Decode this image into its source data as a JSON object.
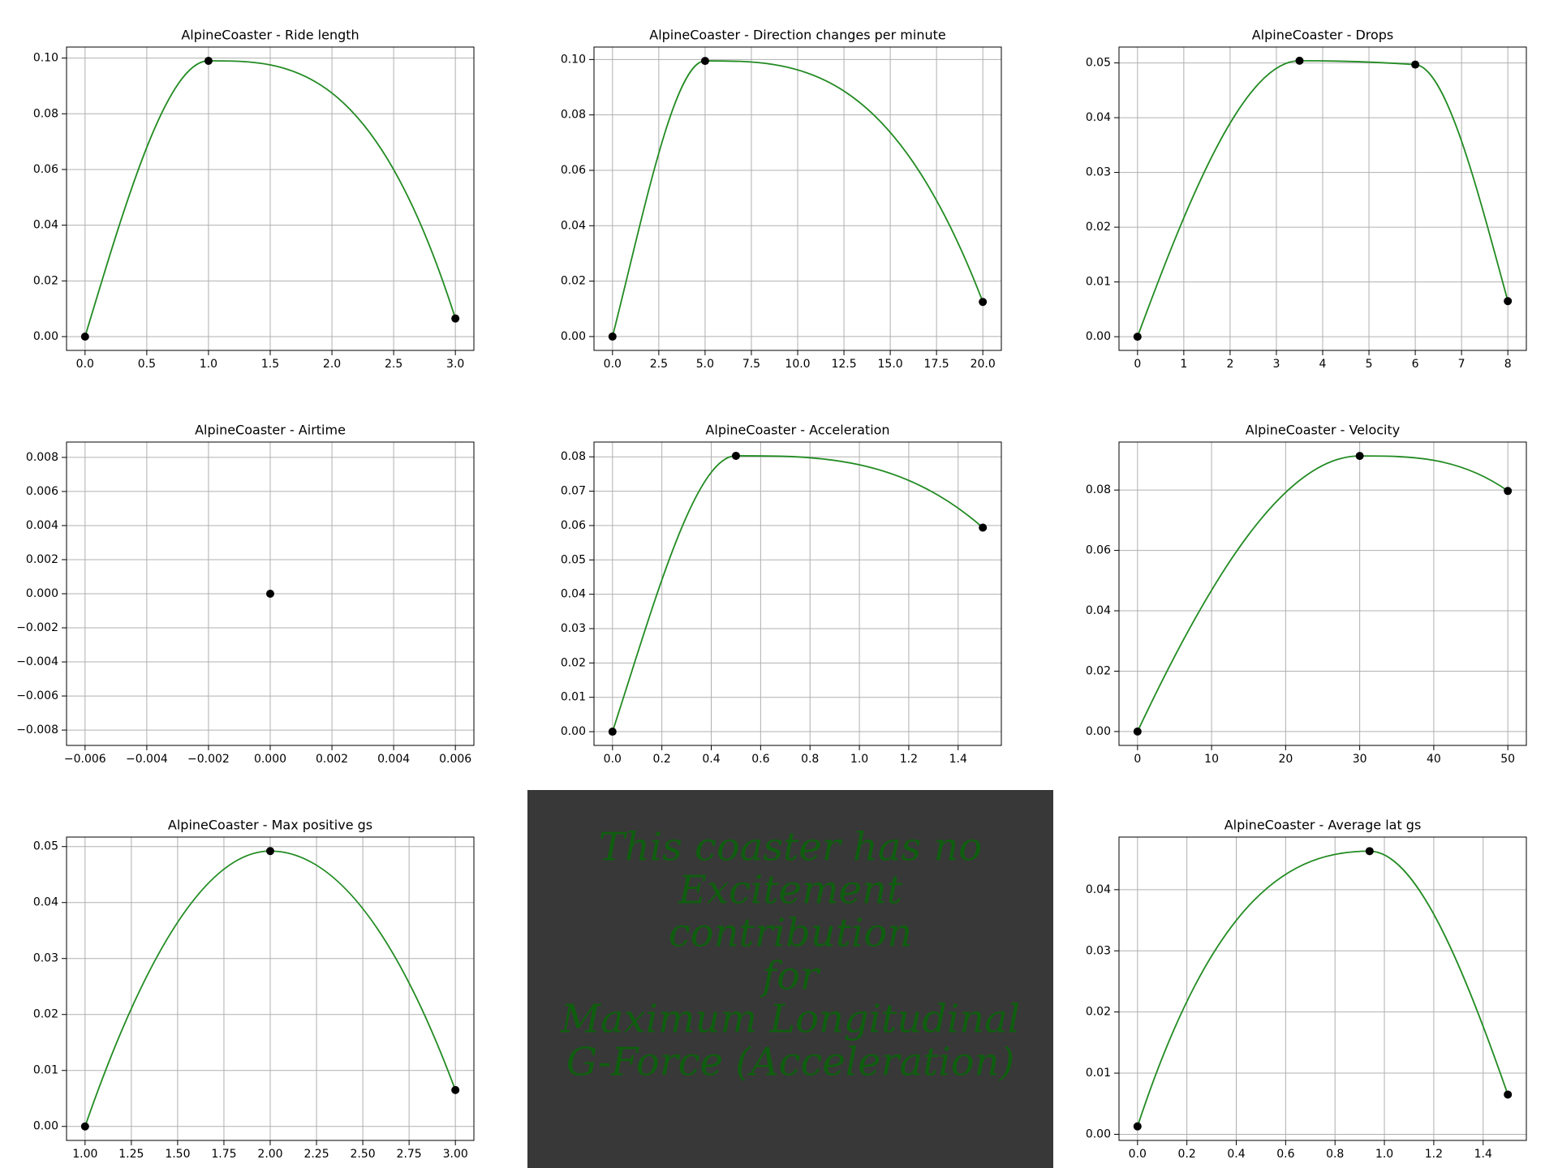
{
  "chart_data": [
    {
      "type": "line",
      "title": "AlpineCoaster - Ride length",
      "color": "#228b22",
      "marker_color": "#000000",
      "grid": true,
      "x": [
        0,
        1,
        3
      ],
      "values": [
        0,
        0.099,
        0.0065
      ],
      "xlim": [
        -0.15,
        3.15
      ],
      "ylim": [
        -0.00495,
        0.10395
      ],
      "xticks": [
        {
          "value": 0,
          "label": "0.0"
        },
        0.5,
        {
          "value": 1,
          "label": "1.0"
        },
        1.5,
        {
          "value": 2,
          "label": "2.0"
        },
        2.5,
        {
          "value": 3,
          "label": "3.0"
        }
      ],
      "yticks": [
        {
          "value": 0,
          "label": "0.00"
        },
        0.02,
        0.04,
        0.06,
        0.08,
        {
          "value": 0.1,
          "label": "0.10"
        }
      ]
    },
    {
      "type": "line",
      "title": "AlpineCoaster - Direction changes per minute",
      "color": "#228b22",
      "marker_color": "#000000",
      "grid": true,
      "x": [
        0,
        5,
        20
      ],
      "values": [
        0,
        0.0995,
        0.0125
      ],
      "xlim": [
        -1,
        21
      ],
      "ylim": [
        -0.005,
        0.1045
      ],
      "xticks": [
        {
          "value": 0,
          "label": "0.0"
        },
        2.5,
        {
          "value": 5,
          "label": "5.0"
        },
        7.5,
        {
          "value": 10,
          "label": "10.0"
        },
        12.5,
        {
          "value": 15,
          "label": "15.0"
        },
        17.5,
        {
          "value": 20,
          "label": "20.0"
        }
      ],
      "yticks": [
        {
          "value": 0,
          "label": "0.00"
        },
        0.02,
        0.04,
        0.06,
        0.08,
        {
          "value": 0.1,
          "label": "0.10"
        }
      ]
    },
    {
      "type": "line",
      "title": "AlpineCoaster - Drops",
      "color": "#228b22",
      "marker_color": "#000000",
      "grid": true,
      "x": [
        0,
        3.5,
        6,
        8
      ],
      "values": [
        0,
        0.0504,
        0.0497,
        0.0065
      ],
      "xlim": [
        -0.4,
        8.4
      ],
      "ylim": [
        -0.0025,
        0.0529
      ],
      "xticks": [
        0,
        1,
        2,
        3,
        4,
        5,
        6,
        7,
        8
      ],
      "yticks": [
        {
          "value": 0,
          "label": "0.00"
        },
        0.01,
        0.02,
        0.03,
        0.04,
        0.05
      ]
    },
    {
      "type": "line",
      "title": "AlpineCoaster - Airtime",
      "color": "#228b22",
      "marker_color": "#000000",
      "grid": true,
      "x": [
        0
      ],
      "values": [
        0
      ],
      "xlim": [
        -0.0066,
        0.0066
      ],
      "ylim": [
        -0.0089,
        0.0089
      ],
      "xticks": [
        {
          "value": -0.006,
          "label": "−0.006"
        },
        {
          "value": -0.004,
          "label": "−0.004"
        },
        {
          "value": -0.002,
          "label": "−0.002"
        },
        {
          "value": 0,
          "label": "0.000"
        },
        0.002,
        0.004,
        0.006
      ],
      "yticks": [
        {
          "value": -0.008,
          "label": "−0.008"
        },
        {
          "value": -0.006,
          "label": "−0.006"
        },
        {
          "value": -0.004,
          "label": "−0.004"
        },
        {
          "value": -0.002,
          "label": "−0.002"
        },
        {
          "value": 0,
          "label": "0.000"
        },
        0.002,
        0.004,
        0.006,
        0.008
      ]
    },
    {
      "type": "line",
      "title": "AlpineCoaster - Acceleration",
      "color": "#228b22",
      "marker_color": "#000000",
      "grid": true,
      "x": [
        0,
        0.5,
        1.5
      ],
      "values": [
        0,
        0.0803,
        0.0594
      ],
      "xlim": [
        -0.075,
        1.575
      ],
      "ylim": [
        -0.004,
        0.0843
      ],
      "xticks": [
        {
          "value": 0,
          "label": "0.0"
        },
        0.2,
        0.4,
        0.6,
        0.8,
        {
          "value": 1,
          "label": "1.0"
        },
        1.2,
        1.4
      ],
      "yticks": [
        {
          "value": 0,
          "label": "0.00"
        },
        0.01,
        0.02,
        0.03,
        0.04,
        0.05,
        0.06,
        0.07,
        0.08
      ]
    },
    {
      "type": "line",
      "title": "AlpineCoaster - Velocity",
      "color": "#228b22",
      "marker_color": "#000000",
      "grid": true,
      "x": [
        0,
        30,
        50
      ],
      "values": [
        0,
        0.0913,
        0.0797
      ],
      "xlim": [
        -2.5,
        52.5
      ],
      "ylim": [
        -0.0046,
        0.0959
      ],
      "xticks": [
        0,
        10,
        20,
        30,
        40,
        50
      ],
      "yticks": [
        {
          "value": 0,
          "label": "0.00"
        },
        0.02,
        0.04,
        0.06,
        0.08
      ]
    },
    {
      "type": "line",
      "title": "AlpineCoaster - Max positive gs",
      "color": "#228b22",
      "marker_color": "#000000",
      "grid": true,
      "x": [
        1,
        2,
        3
      ],
      "values": [
        0,
        0.0492,
        0.0065
      ],
      "xlim": [
        0.9,
        3.1
      ],
      "ylim": [
        -0.0025,
        0.0517
      ],
      "xticks": [
        {
          "value": 1,
          "label": "1.00"
        },
        1.25,
        {
          "value": 1.5,
          "label": "1.50"
        },
        1.75,
        {
          "value": 2,
          "label": "2.00"
        },
        2.25,
        {
          "value": 2.5,
          "label": "2.50"
        },
        2.75,
        {
          "value": 3,
          "label": "3.00"
        }
      ],
      "yticks": [
        {
          "value": 0,
          "label": "0.00"
        },
        0.01,
        0.02,
        0.03,
        0.04,
        0.05
      ]
    },
    {
      "type": "line",
      "title": "AlpineCoaster - Average lat gs",
      "color": "#228b22",
      "marker_color": "#000000",
      "grid": true,
      "x": [
        0,
        0.94,
        1.5
      ],
      "values": [
        0.0013,
        0.0463,
        0.0065
      ],
      "xlim": [
        -0.075,
        1.575
      ],
      "ylim": [
        -0.001,
        0.0486
      ],
      "xticks": [
        {
          "value": 0,
          "label": "0.0"
        },
        0.2,
        0.4,
        0.6,
        0.8,
        {
          "value": 1,
          "label": "1.0"
        },
        1.2,
        1.4
      ],
      "yticks": [
        {
          "value": 0,
          "label": "0.00"
        },
        0.01,
        0.02,
        0.03,
        0.04
      ]
    }
  ],
  "panel": {
    "lines": [
      "This coaster has no",
      "Excitement",
      "contribution",
      "for",
      "Maximum Longitudinal",
      "G-Force (Acceleration)"
    ]
  }
}
